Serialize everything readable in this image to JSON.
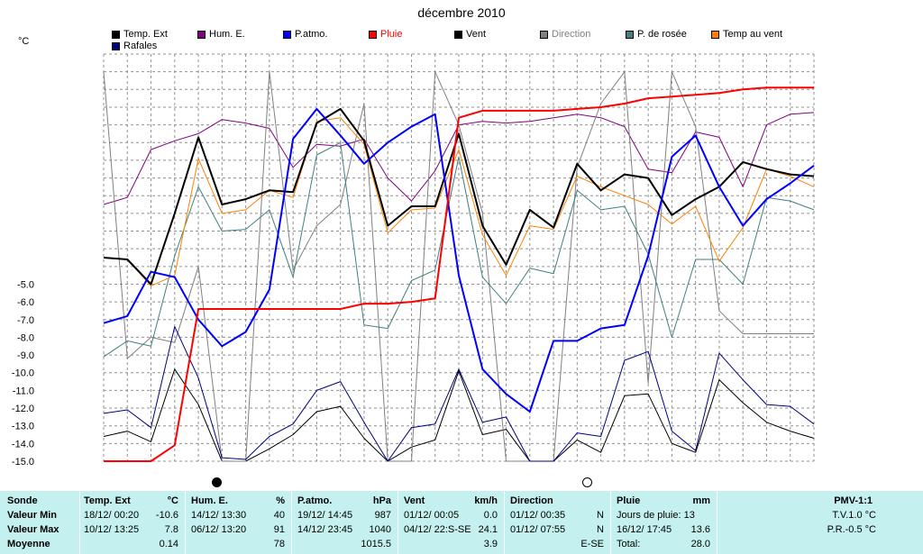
{
  "chart_data": {
    "type": "line",
    "title": "décembre 2010",
    "ylabel": "°C",
    "ylim": [
      -15,
      8
    ],
    "grid": true,
    "yticks": [
      "-5.0",
      "-6.0",
      "-7.0",
      "-8.0",
      "-9.0",
      "-10.0",
      "-11.0",
      "-12.0",
      "-13.0",
      "-14.0",
      "-15.0"
    ],
    "legend": [
      {
        "name": "Temp. Ext",
        "color": "#000000"
      },
      {
        "name": "Hum. E.",
        "color": "#800080"
      },
      {
        "name": "P.atmo.",
        "color": "#0000ff"
      },
      {
        "name": "Pluie",
        "color": "#ff0000"
      },
      {
        "name": "Vent",
        "color": "#000000"
      },
      {
        "name": "Direction",
        "color": "#808080"
      },
      {
        "name": "P. de rosée",
        "color": "#408080"
      },
      {
        "name": "Temp au vent",
        "color": "#ff8000"
      },
      {
        "name": "Rafales",
        "color": "#000080"
      }
    ],
    "x": [
      1,
      2,
      3,
      4,
      5,
      6,
      7,
      8,
      9,
      10,
      11,
      12,
      13,
      14,
      15,
      16,
      17,
      18,
      19,
      20,
      21,
      22,
      23,
      24,
      25,
      26,
      27,
      28,
      29,
      30,
      31
    ],
    "series": [
      {
        "name": "Temp. Ext",
        "color": "#000000",
        "width": 2,
        "values": [
          -3.5,
          -3.6,
          -5.0,
          -1.0,
          3.3,
          -0.5,
          -0.2,
          0.3,
          0.2,
          4.1,
          4.9,
          3.1,
          -1.7,
          -0.6,
          -0.6,
          3.5,
          -1.7,
          -3.9,
          -0.8,
          -1.8,
          1.8,
          0.3,
          1.2,
          1.0,
          -1.1,
          -0.2,
          0.5,
          1.9,
          1.5,
          1.2,
          1.1
        ]
      },
      {
        "name": "Hum. E.",
        "color": "#800080",
        "width": 1,
        "values": [
          -0.5,
          -0.1,
          2.6,
          3.1,
          3.5,
          4.3,
          4.1,
          3.8,
          1.6,
          2.9,
          2.8,
          3.2,
          1.0,
          -0.3,
          1.4,
          4.0,
          4.2,
          4.1,
          4.2,
          4.4,
          4.6,
          4.4,
          3.9,
          1.5,
          1.3,
          3.6,
          3.3,
          0.5,
          4.0,
          4.6,
          4.7
        ]
      },
      {
        "name": "P.atmo.",
        "color": "#0000ff",
        "width": 2,
        "values": [
          -7.2,
          -6.8,
          -4.3,
          -4.6,
          -7.0,
          -8.5,
          -7.7,
          -5.3,
          3.2,
          4.9,
          3.4,
          1.8,
          3.0,
          3.9,
          4.6,
          -4.5,
          -9.8,
          -11.2,
          -12.2,
          -8.2,
          -8.2,
          -7.5,
          -7.3,
          -3.4,
          2.2,
          3.4,
          0.5,
          -1.7,
          -0.2,
          0.7,
          1.7
        ]
      },
      {
        "name": "Pluie",
        "color": "#ff0000",
        "width": 2,
        "values": [
          -15.0,
          -15.0,
          -15.0,
          -14.1,
          -6.4,
          -6.4,
          -6.4,
          -6.4,
          -6.4,
          -6.4,
          -6.4,
          -6.1,
          -6.1,
          -6.0,
          -5.8,
          4.4,
          4.8,
          4.8,
          4.8,
          4.8,
          4.9,
          5.0,
          5.2,
          5.5,
          5.6,
          5.7,
          5.8,
          6.0,
          6.1,
          6.1,
          6.1
        ]
      },
      {
        "name": "Vent",
        "color": "#000000",
        "width": 1,
        "values": [
          -13.6,
          -13.3,
          -13.9,
          -9.8,
          -11.8,
          -15.0,
          -15.0,
          -14.3,
          -13.5,
          -12.2,
          -11.9,
          -13.7,
          -15.0,
          -14.2,
          -13.8,
          -9.9,
          -13.5,
          -13.2,
          -15.0,
          -15.0,
          -13.8,
          -14.5,
          -11.3,
          -11.2,
          -14.0,
          -14.5,
          -10.4,
          -11.7,
          -12.8,
          -13.3,
          -13.7
        ]
      },
      {
        "name": "Direction",
        "color": "#808080",
        "width": 1,
        "values": [
          7.0,
          -9.2,
          -8.0,
          -8.3,
          -4.0,
          -15.0,
          -15.0,
          7.0,
          -4.2,
          -1.7,
          -0.5,
          5.2,
          -15.0,
          -15.0,
          7.0,
          4.0,
          -1.0,
          -15.0,
          -15.0,
          -15.0,
          1.6,
          5.2,
          7.0,
          -10.6,
          7.0,
          3.9,
          -6.5,
          -7.8,
          -7.8,
          -7.8,
          -7.8
        ]
      },
      {
        "name": "P. de rosée",
        "color": "#408080",
        "width": 1,
        "values": [
          -9.1,
          -8.2,
          -8.5,
          -3.4,
          0.5,
          -2.0,
          -1.9,
          -0.8,
          -4.6,
          2.3,
          3.0,
          -7.3,
          -7.5,
          -4.8,
          -4.2,
          2.2,
          -4.6,
          -6.1,
          -4.1,
          -4.4,
          0.3,
          -0.8,
          -0.6,
          -3.3,
          -8.0,
          -3.6,
          -3.6,
          -5.0,
          -0.1,
          -0.3,
          -0.8
        ]
      },
      {
        "name": "Temp au vent",
        "color": "#ff8000",
        "width": 1,
        "values": [
          -3.5,
          -3.6,
          -5.1,
          -4.5,
          2.1,
          -1.0,
          -0.8,
          0.3,
          -0.1,
          4.2,
          4.4,
          2.9,
          -2.1,
          -0.8,
          -0.7,
          2.6,
          -2.2,
          -4.5,
          -1.7,
          -1.9,
          1.1,
          0.5,
          0.0,
          -0.5,
          -1.6,
          -0.6,
          -3.7,
          -1.8,
          1.5,
          1.1,
          0.5
        ]
      },
      {
        "name": "Rafales",
        "color": "#000080",
        "width": 1,
        "values": [
          -12.3,
          -12.1,
          -13.1,
          -7.4,
          -10.3,
          -14.8,
          -14.9,
          -13.6,
          -12.9,
          -11.0,
          -10.5,
          -12.8,
          -15.0,
          -13.1,
          -12.9,
          -9.8,
          -12.8,
          -12.5,
          -15.0,
          -15.0,
          -13.4,
          -13.6,
          -9.3,
          -8.8,
          -13.3,
          -14.4,
          -8.9,
          -10.4,
          -11.8,
          -11.9,
          -12.9
        ]
      }
    ]
  },
  "moon_phases": [
    {
      "symbol": "new-moon",
      "fill": "#000000"
    },
    {
      "symbol": "full-moon",
      "fill": "#ffffff"
    }
  ],
  "table": {
    "header": {
      "sonde": "Sonde",
      "temp": "Temp. Ext",
      "temp_unit": "°C",
      "hum": "Hum. E.",
      "hum_unit": "%",
      "patmo": "P.atmo.",
      "patmo_unit": "hPa",
      "vent": "Vent",
      "vent_unit": "km/h",
      "dir": "Direction",
      "pluie": "Pluie",
      "pluie_unit": "mm",
      "pmv": "PMV-1:1"
    },
    "row_labels": [
      "Valeur Min",
      "Valeur Max",
      "Moyenne"
    ],
    "temp": [
      {
        "date": "18/12/  00:20",
        "val": "-10.6"
      },
      {
        "date": "10/12/  13:25",
        "val": "7.8"
      },
      {
        "date": "",
        "val": "0.14"
      }
    ],
    "hum": [
      {
        "date": "14/12/  13:30",
        "val": "40"
      },
      {
        "date": "06/12/  13:20",
        "val": "91"
      },
      {
        "date": "",
        "val": "78"
      }
    ],
    "patmo": [
      {
        "date": "19/12/  14:45",
        "val": "987"
      },
      {
        "date": "14/12/  23:45",
        "val": "1040"
      },
      {
        "date": "",
        "val": "1015.5"
      }
    ],
    "vent": [
      {
        "date": "01/12/  00:05",
        "val": "0.0"
      },
      {
        "date": "04/12/  22:S-SE",
        "val": "24.1"
      },
      {
        "date": "",
        "val": "3.9"
      }
    ],
    "dir": [
      {
        "date": "01/12/  00:35",
        "val": "N"
      },
      {
        "date": "01/12/  07:55",
        "val": "N"
      },
      {
        "date": "",
        "val": "E-SE"
      }
    ],
    "pluie": [
      {
        "date": "Jours de pluie: 13",
        "val": ""
      },
      {
        "date": "16/12/  17:45",
        "val": "13.6"
      },
      {
        "date": "Total:",
        "val": "28.0"
      }
    ],
    "pmv": [
      "T.V.1.0 °C",
      "P.R.-0.5 °C"
    ]
  }
}
